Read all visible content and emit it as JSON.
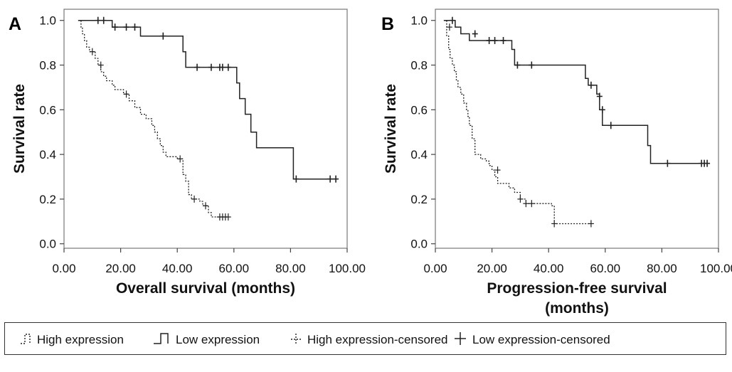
{
  "chart_data": [
    {
      "panel_label": "A",
      "type": "line",
      "subtype": "kaplan-meier step",
      "xlabel": "Overall survival (months)",
      "xlabel_lines": [
        "Overall survival (months)"
      ],
      "ylabel": "Survival rate",
      "xlim": [
        0,
        100
      ],
      "ylim": [
        -0.02,
        1.05
      ],
      "xticks": [
        0,
        20,
        40,
        60,
        80,
        100
      ],
      "xtick_labels": [
        "0.00",
        "20.00",
        "40.00",
        "60.00",
        "80.00",
        "100.00"
      ],
      "yticks": [
        0.0,
        0.2,
        0.4,
        0.6,
        0.8,
        1.0
      ],
      "ytick_labels": [
        "0.0",
        "0.2",
        "0.4",
        "0.6",
        "0.8",
        "1.0"
      ],
      "grid": false,
      "series": [
        {
          "name": "High expression",
          "style": "dashed",
          "steps": [
            [
              5,
              1.0
            ],
            [
              6,
              0.97
            ],
            [
              6.5,
              0.94
            ],
            [
              7.2,
              0.91
            ],
            [
              8,
              0.88
            ],
            [
              9,
              0.86
            ],
            [
              11,
              0.83
            ],
            [
              12,
              0.8
            ],
            [
              13,
              0.77
            ],
            [
              14,
              0.75
            ],
            [
              15,
              0.73
            ],
            [
              17,
              0.71
            ],
            [
              18,
              0.69
            ],
            [
              21,
              0.67
            ],
            [
              23,
              0.64
            ],
            [
              25,
              0.61
            ],
            [
              27,
              0.58
            ],
            [
              29,
              0.56
            ],
            [
              31,
              0.53
            ],
            [
              32,
              0.5
            ],
            [
              33,
              0.47
            ],
            [
              34,
              0.44
            ],
            [
              35,
              0.41
            ],
            [
              36,
              0.39
            ],
            [
              40,
              0.38
            ],
            [
              42,
              0.31
            ],
            [
              43,
              0.28
            ],
            [
              44,
              0.22
            ],
            [
              45,
              0.2
            ],
            [
              48,
              0.19
            ],
            [
              49,
              0.17
            ],
            [
              51,
              0.14
            ],
            [
              52,
              0.12
            ],
            [
              58,
              0.12
            ]
          ],
          "censored": [
            [
              10,
              0.86
            ],
            [
              13,
              0.8
            ],
            [
              22,
              0.67
            ],
            [
              41,
              0.38
            ],
            [
              46,
              0.2
            ],
            [
              50,
              0.17
            ],
            [
              55,
              0.12
            ],
            [
              56,
              0.12
            ],
            [
              57,
              0.12
            ],
            [
              58,
              0.12
            ]
          ]
        },
        {
          "name": "Low expression",
          "style": "solid",
          "steps": [
            [
              5,
              1.0
            ],
            [
              17,
              0.97
            ],
            [
              27,
              0.93
            ],
            [
              37,
              0.93
            ],
            [
              42,
              0.86
            ],
            [
              43,
              0.79
            ],
            [
              60,
              0.79
            ],
            [
              61,
              0.72
            ],
            [
              62,
              0.65
            ],
            [
              64,
              0.58
            ],
            [
              66,
              0.5
            ],
            [
              68,
              0.43
            ],
            [
              77,
              0.43
            ],
            [
              81,
              0.29
            ],
            [
              96,
              0.29
            ]
          ],
          "censored": [
            [
              12,
              1.0
            ],
            [
              14,
              1.0
            ],
            [
              18,
              0.97
            ],
            [
              22,
              0.97
            ],
            [
              25,
              0.97
            ],
            [
              35,
              0.93
            ],
            [
              47,
              0.79
            ],
            [
              52,
              0.79
            ],
            [
              55,
              0.79
            ],
            [
              56,
              0.79
            ],
            [
              58,
              0.79
            ],
            [
              82,
              0.29
            ],
            [
              94,
              0.29
            ],
            [
              96,
              0.29
            ]
          ]
        }
      ]
    },
    {
      "panel_label": "B",
      "type": "line",
      "subtype": "kaplan-meier step",
      "xlabel": "Progression-free survival (months)",
      "xlabel_lines": [
        "Progression-free survival",
        "(months)"
      ],
      "ylabel": "Survival rate",
      "xlim": [
        0,
        100
      ],
      "ylim": [
        -0.02,
        1.05
      ],
      "xticks": [
        0,
        20,
        40,
        60,
        80,
        100
      ],
      "xtick_labels": [
        "0.00",
        "20.00",
        "40.00",
        "60.00",
        "80.00",
        "100.00"
      ],
      "yticks": [
        0.0,
        0.2,
        0.4,
        0.6,
        0.8,
        1.0
      ],
      "ytick_labels": [
        "0.0",
        "0.2",
        "0.4",
        "0.6",
        "0.8",
        "1.0"
      ],
      "grid": false,
      "series": [
        {
          "name": "High expression",
          "style": "dashed",
          "steps": [
            [
              3,
              1.0
            ],
            [
              4,
              0.93
            ],
            [
              4.7,
              0.87
            ],
            [
              5.2,
              0.83
            ],
            [
              6,
              0.8
            ],
            [
              6.7,
              0.77
            ],
            [
              7.4,
              0.73
            ],
            [
              8,
              0.7
            ],
            [
              9,
              0.67
            ],
            [
              10,
              0.63
            ],
            [
              11,
              0.6
            ],
            [
              11.5,
              0.57
            ],
            [
              12,
              0.53
            ],
            [
              13,
              0.47
            ],
            [
              14,
              0.4
            ],
            [
              16,
              0.38
            ],
            [
              18,
              0.37
            ],
            [
              19,
              0.35
            ],
            [
              20,
              0.33
            ],
            [
              21,
              0.3
            ],
            [
              22,
              0.27
            ],
            [
              26,
              0.25
            ],
            [
              28,
              0.23
            ],
            [
              30,
              0.2
            ],
            [
              32,
              0.18
            ],
            [
              36,
              0.18
            ],
            [
              41,
              0.17
            ],
            [
              42,
              0.09
            ],
            [
              55,
              0.09
            ]
          ],
          "censored": [
            [
              5,
              0.97
            ],
            [
              22,
              0.33
            ],
            [
              30,
              0.2
            ],
            [
              32,
              0.18
            ],
            [
              34,
              0.18
            ],
            [
              42,
              0.09
            ],
            [
              55,
              0.09
            ]
          ]
        },
        {
          "name": "Low expression",
          "style": "solid",
          "steps": [
            [
              3,
              1.0
            ],
            [
              7,
              0.97
            ],
            [
              9,
              0.94
            ],
            [
              12,
              0.91
            ],
            [
              27,
              0.87
            ],
            [
              28,
              0.8
            ],
            [
              52,
              0.8
            ],
            [
              53,
              0.74
            ],
            [
              54,
              0.71
            ],
            [
              57,
              0.67
            ],
            [
              58,
              0.6
            ],
            [
              59,
              0.53
            ],
            [
              74,
              0.53
            ],
            [
              75,
              0.44
            ],
            [
              76,
              0.36
            ],
            [
              96,
              0.36
            ]
          ],
          "censored": [
            [
              6,
              1.0
            ],
            [
              14,
              0.94
            ],
            [
              19,
              0.91
            ],
            [
              21,
              0.91
            ],
            [
              24,
              0.91
            ],
            [
              29,
              0.8
            ],
            [
              34,
              0.8
            ],
            [
              55,
              0.71
            ],
            [
              58,
              0.66
            ],
            [
              59,
              0.6
            ],
            [
              62,
              0.53
            ],
            [
              82,
              0.36
            ],
            [
              94,
              0.36
            ],
            [
              95,
              0.36
            ],
            [
              96,
              0.36
            ]
          ]
        }
      ]
    }
  ],
  "legend": {
    "items": [
      {
        "label": "High expression",
        "symbol": "dashed-step"
      },
      {
        "label": "Low expression",
        "symbol": "solid-step"
      },
      {
        "label": "High expression-censored",
        "symbol": "dashed-plus"
      },
      {
        "label": "Low expression-censored",
        "symbol": "solid-plus"
      }
    ]
  }
}
